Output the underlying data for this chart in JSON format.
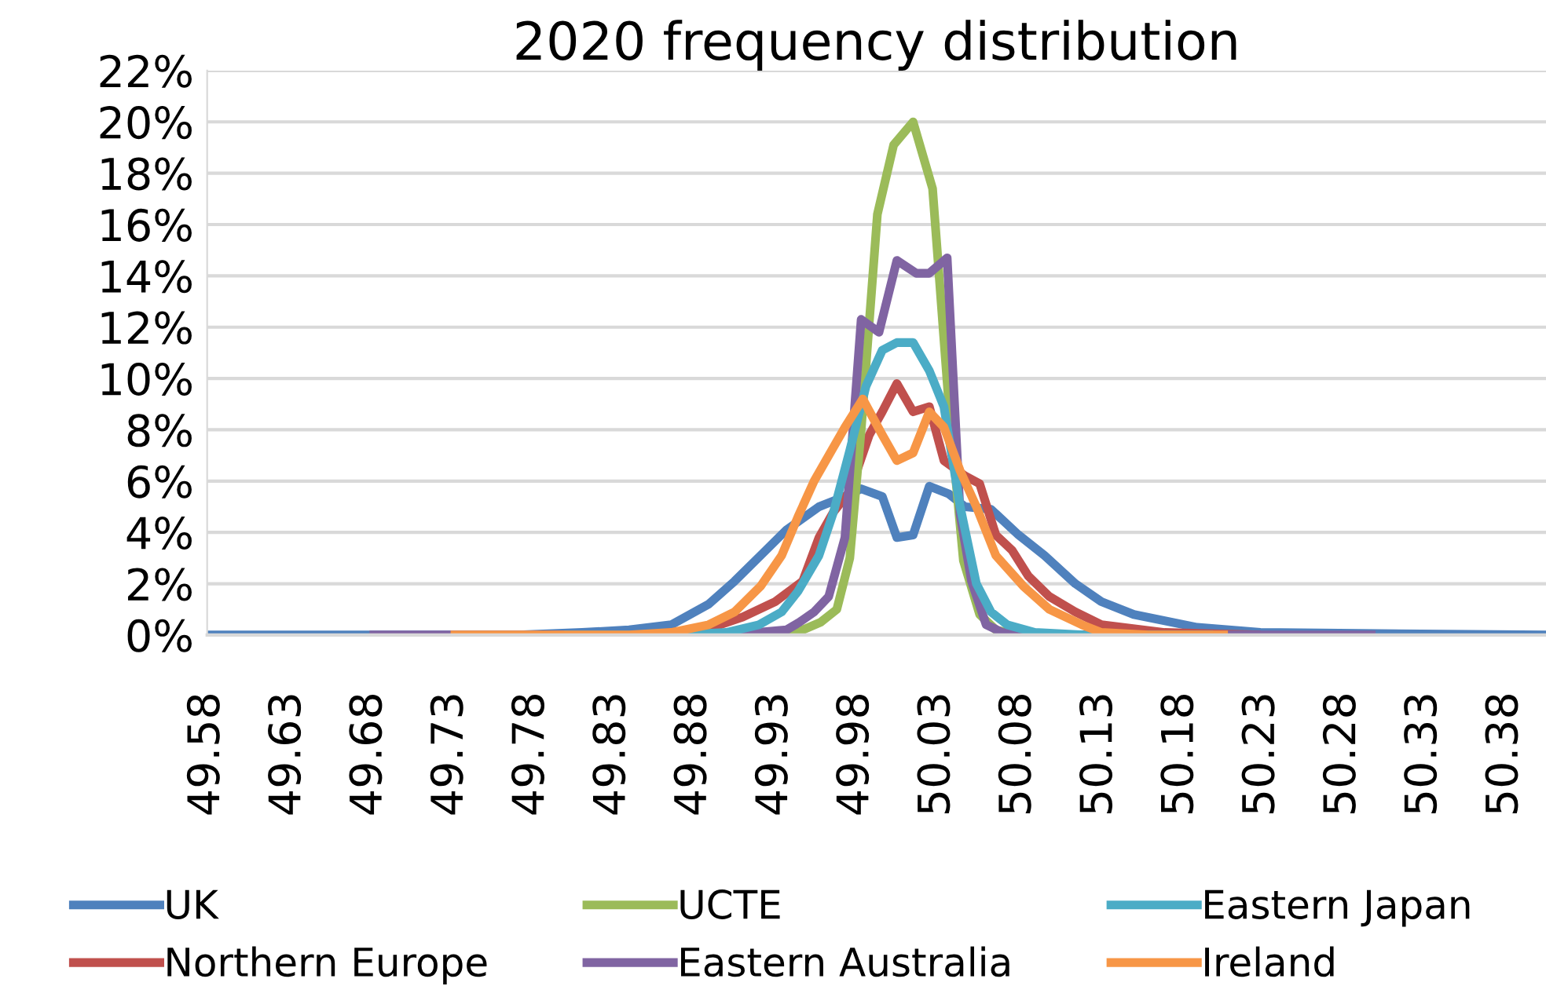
{
  "chart_data": {
    "type": "line",
    "title": "2020 frequency distribution",
    "xlim": [
      49.58,
      50.405
    ],
    "xticks": [
      49.58,
      49.63,
      49.68,
      49.73,
      49.78,
      49.83,
      49.88,
      49.93,
      49.98,
      50.03,
      50.08,
      50.13,
      50.18,
      50.23,
      50.28,
      50.33,
      50.38
    ],
    "ylim": [
      0,
      22
    ],
    "yticks": [
      {
        "value": 0,
        "label": "0%"
      },
      {
        "value": 2,
        "label": "2%"
      },
      {
        "value": 4,
        "label": "4%"
      },
      {
        "value": 6,
        "label": "6%"
      },
      {
        "value": 8,
        "label": "8%"
      },
      {
        "value": 10,
        "label": "10%"
      },
      {
        "value": 12,
        "label": "12%"
      },
      {
        "value": 14,
        "label": "14%"
      },
      {
        "value": 16,
        "label": "16%"
      },
      {
        "value": 18,
        "label": "18%"
      },
      {
        "value": 20,
        "label": "20%"
      },
      {
        "value": 22,
        "label": "22%"
      }
    ],
    "grid": "y",
    "legend": "bottom",
    "marker": "none",
    "line_style": "solid",
    "series": [
      {
        "name": "UK",
        "color": "#4f81bd",
        "x": [
          49.58,
          49.772,
          49.811,
          49.84,
          49.866,
          49.889,
          49.905,
          49.921,
          49.937,
          49.957,
          49.969,
          49.983,
          49.996,
          50.005,
          50.015,
          50.025,
          50.037,
          50.047,
          50.063,
          50.08,
          50.096,
          50.115,
          50.131,
          50.151,
          50.19,
          50.229,
          50.405
        ],
        "values": [
          0,
          0,
          0.1,
          0.2,
          0.4,
          1.2,
          2.1,
          3.1,
          4.1,
          5.0,
          5.3,
          5.7,
          5.4,
          3.8,
          3.9,
          5.8,
          5.5,
          5.0,
          4.9,
          3.9,
          3.1,
          2.0,
          1.3,
          0.8,
          0.3,
          0.1,
          0
        ]
      },
      {
        "name": "Northern Europe",
        "color": "#c0504d",
        "x": [
          49.78,
          49.85,
          49.889,
          49.91,
          49.93,
          49.947,
          49.957,
          49.966,
          49.976,
          49.988,
          49.996,
          50.005,
          50.015,
          50.025,
          50.034,
          50.047,
          50.056,
          50.066,
          50.076,
          50.086,
          50.099,
          50.115,
          50.131,
          50.17,
          50.229
        ],
        "values": [
          0,
          0,
          0.25,
          0.7,
          1.3,
          2.1,
          3.8,
          4.8,
          5.6,
          7.8,
          8.7,
          9.8,
          8.7,
          8.9,
          6.8,
          6.2,
          5.9,
          3.9,
          3.3,
          2.3,
          1.5,
          0.9,
          0.4,
          0.1,
          0
        ]
      },
      {
        "name": "UCTE",
        "color": "#9bbb59",
        "x": [
          49.8,
          49.93,
          49.947,
          49.958,
          49.968,
          49.976,
          49.983,
          49.993,
          50.003,
          50.015,
          50.027,
          50.037,
          50.046,
          50.056,
          50.066,
          50.08,
          50.2
        ],
        "values": [
          0,
          0,
          0.2,
          0.5,
          1.0,
          3.0,
          8.0,
          16.4,
          19.1,
          20.0,
          17.4,
          9.0,
          2.9,
          0.8,
          0.2,
          0,
          0
        ]
      },
      {
        "name": "Eastern Australia",
        "color": "#8064a2",
        "x": [
          49.68,
          49.9,
          49.937,
          49.945,
          49.954,
          49.963,
          49.973,
          49.983,
          49.994,
          50.005,
          50.017,
          50.025,
          50.036,
          50.044,
          50.051,
          50.06,
          50.07,
          50.1,
          50.3
        ],
        "values": [
          0,
          0,
          0.2,
          0.5,
          0.9,
          1.5,
          3.8,
          12.3,
          11.8,
          14.6,
          14.1,
          14.1,
          14.7,
          4.7,
          2.1,
          0.4,
          0.1,
          0,
          0
        ]
      },
      {
        "name": "Eastern Japan",
        "color": "#4bacc6",
        "x": [
          49.8,
          49.87,
          49.9,
          49.92,
          49.934,
          49.944,
          49.957,
          49.966,
          49.976,
          49.986,
          49.996,
          50.005,
          50.015,
          50.025,
          50.034,
          50.044,
          50.054,
          50.063,
          50.073,
          50.09,
          50.12,
          50.2
        ],
        "values": [
          0,
          0,
          0.1,
          0.4,
          0.9,
          1.7,
          3.1,
          4.8,
          7.2,
          9.7,
          11.1,
          11.4,
          11.4,
          10.3,
          8.9,
          5.0,
          2.0,
          0.9,
          0.4,
          0.1,
          0,
          0
        ]
      },
      {
        "name": "Ireland",
        "color": "#f79646",
        "x": [
          49.73,
          49.84,
          49.866,
          49.889,
          49.905,
          49.921,
          49.934,
          49.944,
          49.954,
          49.963,
          49.973,
          49.984,
          49.996,
          50.005,
          50.015,
          50.025,
          50.034,
          50.044,
          50.054,
          50.066,
          50.083,
          50.099,
          50.119,
          50.131,
          50.16,
          50.209
        ],
        "values": [
          0,
          0,
          0.1,
          0.4,
          0.9,
          1.9,
          3.1,
          4.6,
          6.0,
          7.0,
          8.1,
          9.2,
          7.8,
          6.8,
          7.1,
          8.7,
          8.1,
          6.4,
          5.0,
          3.1,
          1.9,
          1.0,
          0.4,
          0.1,
          0,
          0
        ]
      }
    ]
  }
}
